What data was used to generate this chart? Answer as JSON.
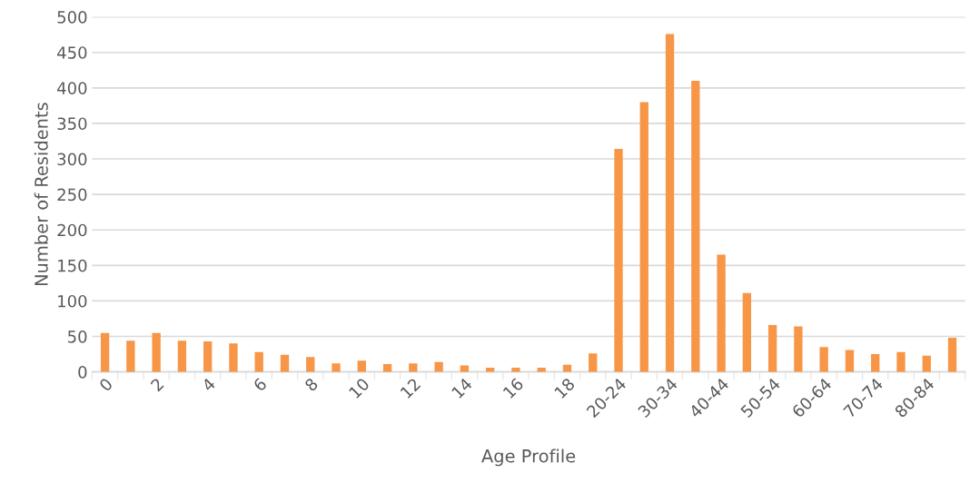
{
  "chart_data": {
    "type": "bar",
    "xlabel": "Age Profile",
    "ylabel": "Number of Residents",
    "categories": [
      "0",
      null,
      "2",
      null,
      "4",
      null,
      "6",
      null,
      "8",
      null,
      "10",
      null,
      "12",
      null,
      "14",
      null,
      "16",
      null,
      "18",
      null,
      "20-24",
      null,
      "30-34",
      null,
      "40-44",
      null,
      "50-54",
      null,
      "60-64",
      null,
      "70-74",
      null,
      "80-84",
      null
    ],
    "values": [
      55,
      44,
      55,
      44,
      43,
      40,
      28,
      24,
      21,
      12,
      16,
      11,
      12,
      14,
      9,
      6,
      6,
      6,
      10,
      26,
      314,
      380,
      476,
      410,
      165,
      111,
      66,
      64,
      35,
      31,
      25,
      28,
      23,
      48
    ],
    "color": "#f79646",
    "ylim": [
      0,
      500
    ],
    "yticks": [
      0,
      50,
      100,
      150,
      200,
      250,
      300,
      350,
      400,
      450,
      500
    ],
    "grid": "y"
  }
}
